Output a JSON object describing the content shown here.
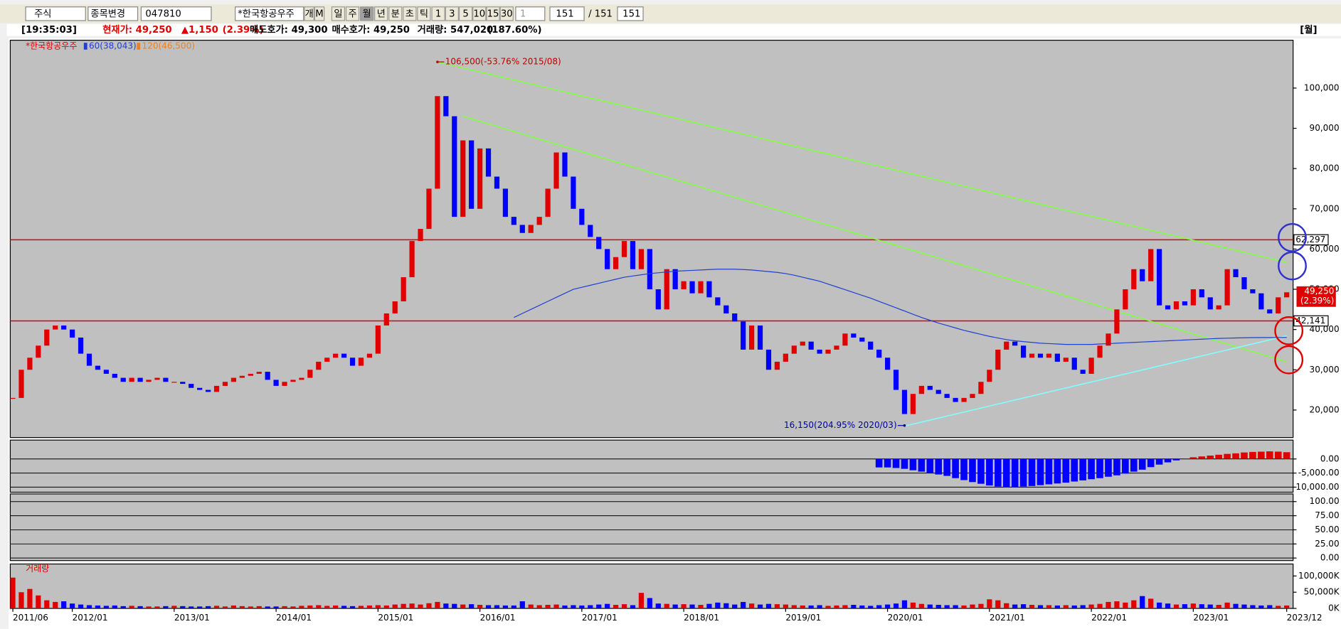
{
  "toolbar": {
    "market": "주식",
    "action": "종목변경",
    "code": "047810",
    "name": "*한국항공우주",
    "extra": [
      "개",
      "M"
    ],
    "period_buttons": [
      "일",
      "주",
      "월",
      "년",
      "분",
      "초",
      "틱"
    ],
    "minutes": [
      "1",
      "3",
      "5",
      "10",
      "15",
      "30"
    ],
    "unit": "1",
    "count": "151",
    "total": "/ 151",
    "view": "151"
  },
  "info_bar": {
    "time": "[19:35:03]",
    "price": "현재가: 49,250",
    "change": "▲1,150",
    "rate": "(2.39%)",
    "ask": "매도호가: 49,300",
    "bid": "매수호가: 49,250",
    "volume": "거래량: 547,020",
    "volume_rate": "(187.60%)",
    "period": "[월]"
  },
  "chart_data": [
    {
      "type": "candlestick",
      "title": "*한국항공우주",
      "color_up": "#e00000",
      "color_down": "#0000ff",
      "x": [
        "2011/06",
        "2011/07",
        "2011/08",
        "2011/09",
        "2011/10",
        "2011/11",
        "2011/12",
        "2012/01",
        "2012/02",
        "2012/03",
        "2012/04",
        "2012/05",
        "2012/06",
        "2012/07",
        "2012/08",
        "2012/09",
        "2012/10",
        "2012/11",
        "2012/12",
        "2013/01",
        "2013/02",
        "2013/03",
        "2013/04",
        "2013/05",
        "2013/06",
        "2013/07",
        "2013/08",
        "2013/09",
        "2013/10",
        "2013/11",
        "2013/12",
        "2014/01",
        "2014/02",
        "2014/03",
        "2014/04",
        "2014/05",
        "2014/06",
        "2014/07",
        "2014/08",
        "2014/09",
        "2014/10",
        "2014/11",
        "2014/12",
        "2015/01",
        "2015/02",
        "2015/03",
        "2015/04",
        "2015/05",
        "2015/06",
        "2015/07",
        "2015/08",
        "2015/09",
        "2015/10",
        "2015/11",
        "2015/12",
        "2016/01",
        "2016/02",
        "2016/03",
        "2016/04",
        "2016/05",
        "2016/06",
        "2016/07",
        "2016/08",
        "2016/09",
        "2016/10",
        "2016/11",
        "2016/12",
        "2017/01",
        "2017/02",
        "2017/03",
        "2017/04",
        "2017/05",
        "2017/06",
        "2017/07",
        "2017/08",
        "2017/09",
        "2017/10",
        "2017/11",
        "2017/12",
        "2018/01",
        "2018/02",
        "2018/03",
        "2018/04",
        "2018/05",
        "2018/06",
        "2018/07",
        "2018/08",
        "2018/09",
        "2018/10",
        "2018/11",
        "2018/12",
        "2019/01",
        "2019/02",
        "2019/03",
        "2019/04",
        "2019/05",
        "2019/06",
        "2019/07",
        "2019/08",
        "2019/09",
        "2019/10",
        "2019/11",
        "2019/12",
        "2020/01",
        "2020/02",
        "2020/03",
        "2020/04",
        "2020/05",
        "2020/06",
        "2020/07",
        "2020/08",
        "2020/09",
        "2020/10",
        "2020/11",
        "2020/12",
        "2021/01",
        "2021/02",
        "2021/03",
        "2021/04",
        "2021/05",
        "2021/06",
        "2021/07",
        "2021/08",
        "2021/09",
        "2021/10",
        "2021/11",
        "2021/12",
        "2022/01",
        "2022/02",
        "2022/03",
        "2022/04",
        "2022/05",
        "2022/06",
        "2022/07",
        "2022/08",
        "2022/09",
        "2022/10",
        "2022/11",
        "2022/12",
        "2023/01",
        "2023/02",
        "2023/03",
        "2023/04",
        "2023/05",
        "2023/06",
        "2023/07",
        "2023/08",
        "2023/09",
        "2023/10",
        "2023/11",
        "2023/12"
      ],
      "values": [
        23000,
        30000,
        33000,
        36000,
        40000,
        41000,
        40000,
        38000,
        34000,
        31000,
        30000,
        29000,
        28000,
        27000,
        28000,
        27000,
        27500,
        28000,
        27000,
        27000,
        26500,
        25500,
        25000,
        24500,
        26000,
        27000,
        28000,
        28500,
        29000,
        29500,
        27500,
        26000,
        27000,
        27500,
        28000,
        30000,
        32000,
        33000,
        34000,
        33000,
        31000,
        33000,
        34000,
        41000,
        44000,
        47000,
        53000,
        62000,
        65000,
        75000,
        98000,
        93000,
        68000,
        87000,
        70000,
        85000,
        78000,
        75000,
        68000,
        66000,
        64000,
        66000,
        68000,
        75000,
        84000,
        78000,
        70000,
        66000,
        63000,
        60000,
        55000,
        58000,
        62000,
        55000,
        60000,
        50000,
        45000,
        55000,
        50000,
        52000,
        49000,
        52000,
        48000,
        46000,
        44000,
        42000,
        35000,
        41000,
        35000,
        30000,
        32000,
        34000,
        36000,
        37000,
        35000,
        34000,
        35000,
        36000,
        39000,
        38000,
        37000,
        35000,
        33000,
        30000,
        25000,
        19000,
        24000,
        26000,
        25000,
        24000,
        23000,
        22000,
        23000,
        24000,
        27000,
        30000,
        35000,
        37000,
        36000,
        33000,
        34000,
        33000,
        34000,
        32000,
        33000,
        30000,
        29000,
        33000,
        36000,
        39000,
        45000,
        50000,
        55000,
        52000,
        60000,
        46000,
        45000,
        47000,
        46000,
        50000,
        48000,
        45000,
        46000,
        55000,
        53000,
        50000,
        49000,
        45000,
        44000,
        48000,
        49250
      ],
      "series": [
        {
          "name": "60(38,043)",
          "color": "#2040d0",
          "values": [
            null,
            null,
            null,
            null,
            null,
            null,
            null,
            null,
            null,
            null,
            null,
            null,
            null,
            null,
            null,
            null,
            null,
            null,
            null,
            null,
            null,
            null,
            null,
            null,
            null,
            null,
            null,
            null,
            null,
            null,
            null,
            null,
            null,
            null,
            null,
            null,
            null,
            null,
            null,
            null,
            null,
            null,
            null,
            null,
            null,
            null,
            null,
            null,
            null,
            null,
            null,
            null,
            null,
            null,
            null,
            null,
            null,
            null,
            null,
            43000,
            44000,
            45000,
            46000,
            47000,
            48000,
            49000,
            50000,
            50500,
            51000,
            51500,
            52000,
            52500,
            53000,
            53300,
            53600,
            53900,
            54100,
            54300,
            54500,
            54600,
            54700,
            54800,
            54900,
            55000,
            55000,
            55000,
            54900,
            54800,
            54600,
            54400,
            54200,
            53900,
            53500,
            53000,
            52500,
            52000,
            51300,
            50600,
            49900,
            49200,
            48500,
            47800,
            47000,
            46200,
            45400,
            44600,
            43800,
            43000,
            42300,
            41600,
            41000,
            40400,
            39800,
            39300,
            38800,
            38300,
            37900,
            37500,
            37200,
            37000,
            36800,
            36600,
            36500,
            36400,
            36300,
            36300,
            36300,
            36300,
            36400,
            36500,
            36600,
            36700,
            36800,
            36900,
            37000,
            37100,
            37200,
            37300,
            37400,
            37500,
            37600,
            37700,
            37800,
            37850,
            37900,
            37950,
            38000,
            38010,
            38020,
            38030,
            38043
          ]
        },
        {
          "name": "120(46,500)",
          "color": "#f08020"
        }
      ],
      "ylim": [
        13160,
        111890
      ],
      "yticks": [
        {
          "value": 20000,
          "label": "20,000"
        },
        {
          "value": 30000,
          "label": "30,000"
        },
        {
          "value": 40000,
          "label": "40,000"
        },
        {
          "value": 50000,
          "label": "50,000"
        },
        {
          "value": 60000,
          "label": "60,000"
        },
        {
          "value": 70000,
          "label": "70,000"
        },
        {
          "value": 80000,
          "label": "80,000"
        },
        {
          "value": 90000,
          "label": "90,000"
        },
        {
          "value": 100000,
          "label": "100,000"
        }
      ],
      "levels": [
        {
          "value": 62297,
          "label": "62,297",
          "color": "#e00000"
        },
        {
          "value": 42141,
          "label": "42,141",
          "color": "#e00000"
        }
      ],
      "price_tag": {
        "value": 49250,
        "label": "49,250",
        "change": "(2.39%)"
      },
      "annotations": [
        {
          "text": "106,500(-53.76% 2015/08)",
          "x": "2015/08",
          "value": 106500,
          "color": "#c00000"
        },
        {
          "text": "16,150(204.95% 2020/03)",
          "x": "2020/03",
          "value": 16150,
          "color": "#0000a0"
        }
      ],
      "trendlines": [
        {
          "color": "#80ff40",
          "from": [
            "2015/08",
            106500
          ],
          "to": [
            "2023/12",
            56700
          ]
        },
        {
          "color": "#80ff40",
          "from": [
            "2015/11",
            93000
          ],
          "to": [
            "2023/12",
            32000
          ]
        },
        {
          "color": "#80ffff",
          "from": [
            "2020/03",
            16000
          ],
          "to": [
            "2023/12",
            38430
          ]
        }
      ]
    },
    {
      "type": "histogram_osc",
      "color_pos": "#e00000",
      "color_neg": "#0000ff",
      "values": [
        null,
        null,
        null,
        null,
        null,
        null,
        null,
        null,
        null,
        null,
        null,
        null,
        null,
        null,
        null,
        null,
        null,
        null,
        null,
        null,
        null,
        null,
        null,
        null,
        null,
        null,
        null,
        null,
        null,
        null,
        null,
        null,
        null,
        null,
        null,
        null,
        null,
        null,
        null,
        null,
        null,
        null,
        null,
        null,
        null,
        null,
        null,
        null,
        null,
        null,
        null,
        null,
        null,
        null,
        null,
        null,
        null,
        null,
        null,
        null,
        null,
        null,
        null,
        null,
        null,
        null,
        null,
        null,
        null,
        null,
        null,
        null,
        null,
        null,
        null,
        null,
        null,
        null,
        null,
        null,
        null,
        null,
        null,
        null,
        null,
        null,
        null,
        null,
        null,
        null,
        null,
        null,
        null,
        null,
        null,
        null,
        null,
        null,
        null,
        null,
        null,
        null,
        -3000,
        -3000,
        -3200,
        -3500,
        -4000,
        -4500,
        -5000,
        -5500,
        -6000,
        -6800,
        -7500,
        -8200,
        -8800,
        -9400,
        -9800,
        -10000,
        -10000,
        -9800,
        -9600,
        -9300,
        -9000,
        -8700,
        -8400,
        -8000,
        -7600,
        -7200,
        -6800,
        -6300,
        -5800,
        -5200,
        -4500,
        -3800,
        -2900,
        -2000,
        -1200,
        -500,
        200,
        600,
        900,
        1200,
        1500,
        1800,
        2000,
        2300,
        2500,
        2600,
        2700,
        2600,
        2400
      ],
      "ylim": [
        -11800,
        6700
      ],
      "yticks": [
        {
          "value": 0,
          "label": "0.00"
        },
        {
          "value": -5000,
          "label": "-5,000.00"
        },
        {
          "value": -10000,
          "label": "-10,000.00"
        }
      ]
    },
    {
      "type": "oscillator",
      "ylim": [
        -4.5,
        113.6
      ],
      "yticks": [
        {
          "value": 100,
          "label": "100.00"
        },
        {
          "value": 75,
          "label": "75.00"
        },
        {
          "value": 50,
          "label": "50.00"
        },
        {
          "value": 25,
          "label": "25.00"
        },
        {
          "value": 0,
          "label": "0.00"
        }
      ]
    },
    {
      "type": "volume",
      "title": "거래량",
      "values": [
        95000,
        50000,
        60000,
        40000,
        25000,
        20000,
        22000,
        15000,
        12000,
        10000,
        9000,
        8000,
        9000,
        7000,
        8000,
        7000,
        6000,
        6000,
        7000,
        8000,
        7000,
        6000,
        6000,
        7000,
        8000,
        6000,
        9000,
        7000,
        6000,
        7000,
        6000,
        6000,
        7000,
        6000,
        8000,
        9000,
        10000,
        8000,
        9000,
        8000,
        7000,
        8000,
        9000,
        10000,
        9000,
        12000,
        14000,
        15000,
        12000,
        16000,
        20000,
        15000,
        14000,
        12000,
        13000,
        11000,
        10000,
        10000,
        9000,
        9000,
        22000,
        12000,
        10000,
        11000,
        12000,
        9000,
        10000,
        9000,
        10000,
        12000,
        14000,
        11000,
        13000,
        10000,
        48000,
        32000,
        15000,
        14000,
        12000,
        13000,
        12000,
        11000,
        14000,
        18000,
        16000,
        12000,
        20000,
        15000,
        12000,
        14000,
        13000,
        12000,
        10000,
        9000,
        9000,
        10000,
        8000,
        9000,
        10000,
        11000,
        9000,
        8000,
        10000,
        12000,
        15000,
        25000,
        18000,
        14000,
        12000,
        11000,
        10000,
        10000,
        9000,
        12000,
        14000,
        28000,
        25000,
        16000,
        12000,
        13000,
        11000,
        10000,
        10000,
        9000,
        10000,
        9000,
        10000,
        12000,
        14000,
        20000,
        22000,
        18000,
        25000,
        38000,
        30000,
        18000,
        15000,
        12000,
        13000,
        15000,
        13000,
        12000,
        11000,
        18000,
        14000,
        12000,
        10000,
        9000,
        10000,
        8000,
        9000
      ],
      "ylim": [
        0,
        137000
      ],
      "yticks": [
        {
          "value": 100000,
          "label": "100,000K"
        },
        {
          "value": 50000,
          "label": "50,000K"
        },
        {
          "value": 0,
          "label": "0K"
        }
      ]
    }
  ]
}
